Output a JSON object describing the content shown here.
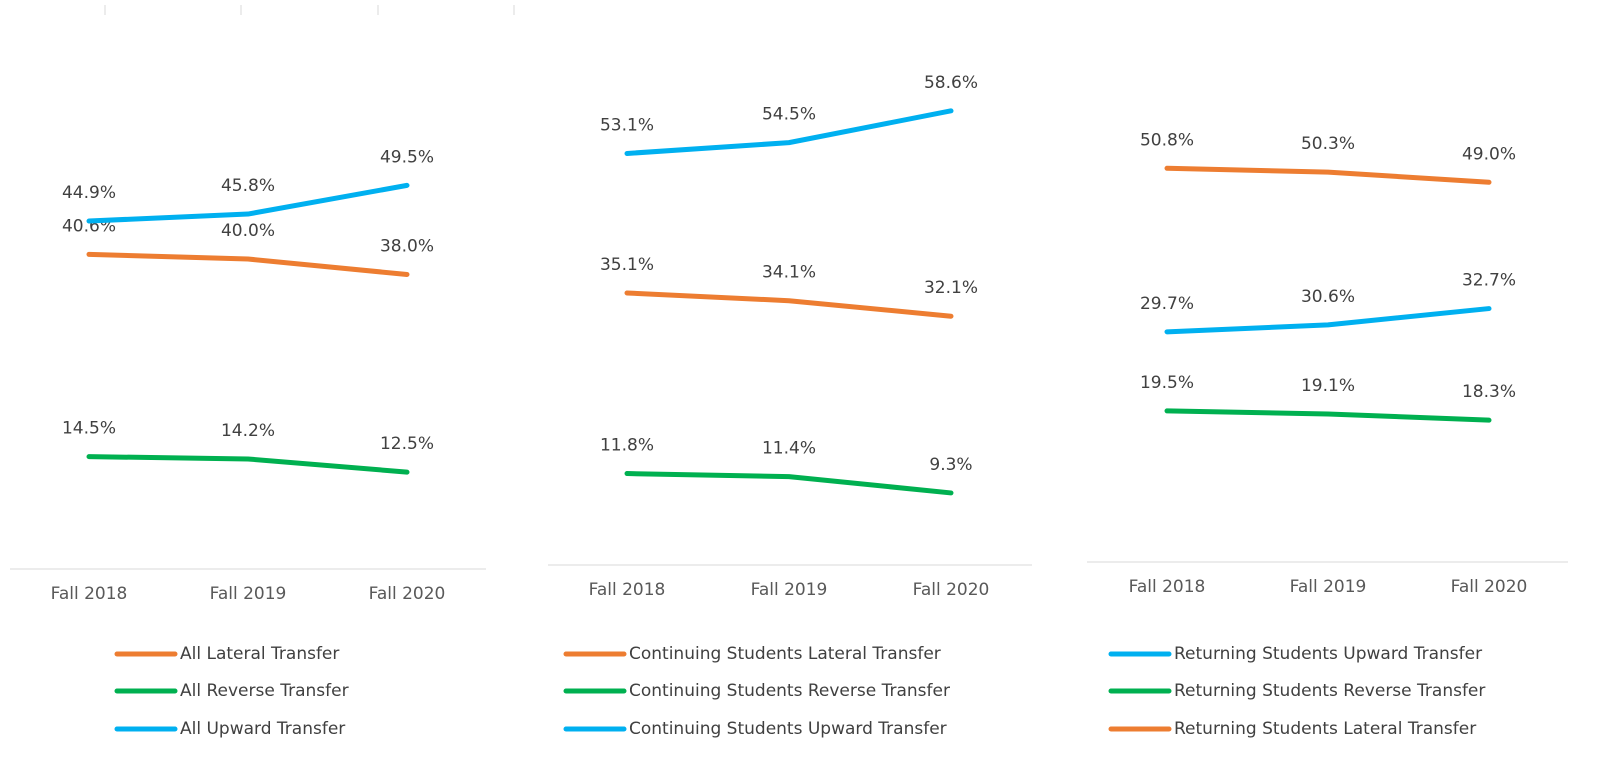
{
  "chart_data": [
    {
      "type": "line",
      "categories": [
        "Fall 2018",
        "Fall 2019",
        "Fall 2020"
      ],
      "ylim": [
        0,
        70
      ],
      "series": [
        {
          "name": "All Lateral Transfer",
          "color": "#ed7d31",
          "values": [
            40.6,
            40.0,
            38.0
          ],
          "value_labels": [
            "40.6%",
            "40.0%",
            "38.0%"
          ]
        },
        {
          "name": "All Reverse Transfer",
          "color": "#00b050",
          "values": [
            14.5,
            14.2,
            12.5
          ],
          "value_labels": [
            "14.5%",
            "14.2%",
            "12.5%"
          ]
        },
        {
          "name": "All Upward Transfer",
          "color": "#00b0f0",
          "values": [
            44.9,
            45.8,
            49.5
          ],
          "value_labels": [
            "44.9%",
            "45.8%",
            "49.5%"
          ]
        }
      ]
    },
    {
      "type": "line",
      "categories": [
        "Fall 2018",
        "Fall 2019",
        "Fall 2020"
      ],
      "ylim": [
        0,
        70
      ],
      "series": [
        {
          "name": "Continuing Students Lateral Transfer",
          "color": "#ed7d31",
          "values": [
            35.1,
            34.1,
            32.1
          ],
          "value_labels": [
            "35.1%",
            "34.1%",
            "32.1%"
          ]
        },
        {
          "name": "Continuing Students Reverse Transfer",
          "color": "#00b050",
          "values": [
            11.8,
            11.4,
            9.3
          ],
          "value_labels": [
            "11.8%",
            "11.4%",
            "9.3%"
          ]
        },
        {
          "name": "Continuing Students Upward Transfer",
          "color": "#00b0f0",
          "values": [
            53.1,
            54.5,
            58.6
          ],
          "value_labels": [
            "53.1%",
            "54.5%",
            "58.6%"
          ]
        }
      ]
    },
    {
      "type": "line",
      "categories": [
        "Fall 2018",
        "Fall 2019",
        "Fall 2020"
      ],
      "ylim": [
        0,
        70
      ],
      "series": [
        {
          "name": "Returning Students Upward Transfer",
          "color": "#00b0f0",
          "values": [
            29.7,
            30.6,
            32.7
          ],
          "value_labels": [
            "29.7%",
            "30.6%",
            "32.7%"
          ]
        },
        {
          "name": "Returning Students Reverse Transfer",
          "color": "#00b050",
          "values": [
            19.5,
            19.1,
            18.3
          ],
          "value_labels": [
            "19.5%",
            "19.1%",
            "18.3%"
          ]
        },
        {
          "name": "Returning Students Lateral Transfer",
          "color": "#ed7d31",
          "values": [
            50.8,
            50.3,
            49.0
          ],
          "value_labels": [
            "50.8%",
            "50.3%",
            "49.0%"
          ]
        }
      ]
    }
  ]
}
